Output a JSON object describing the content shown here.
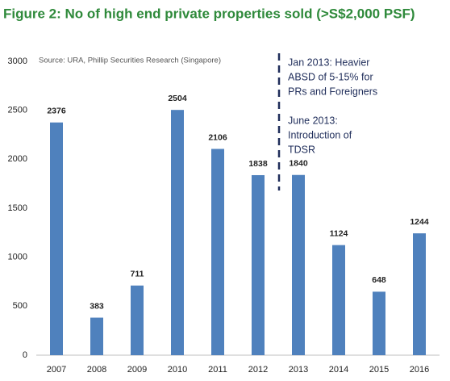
{
  "chart_data": {
    "type": "bar",
    "title": "Figure 2: No of high end private properties sold (>S$2,000 PSF)",
    "source": "Source: URA, Phillip Securities Research (Singapore)",
    "annotations": [
      "Jan 2013: Heavier",
      "ABSD of 5-15% for",
      "PRs and Foreigners",
      "June 2013:",
      "Introduction of",
      "TDSR"
    ],
    "categories": [
      "2007",
      "2008",
      "2009",
      "2010",
      "2011",
      "2012",
      "2013",
      "2014",
      "2015",
      "2016"
    ],
    "values": [
      2376,
      383,
      711,
      2504,
      2106,
      1838,
      1840,
      1124,
      648,
      1244
    ],
    "color": "#4f81bd",
    "ylim": [
      0,
      3000
    ],
    "yticks": [
      0,
      500,
      1000,
      1500,
      2000,
      2500,
      3000
    ],
    "grid": false
  }
}
